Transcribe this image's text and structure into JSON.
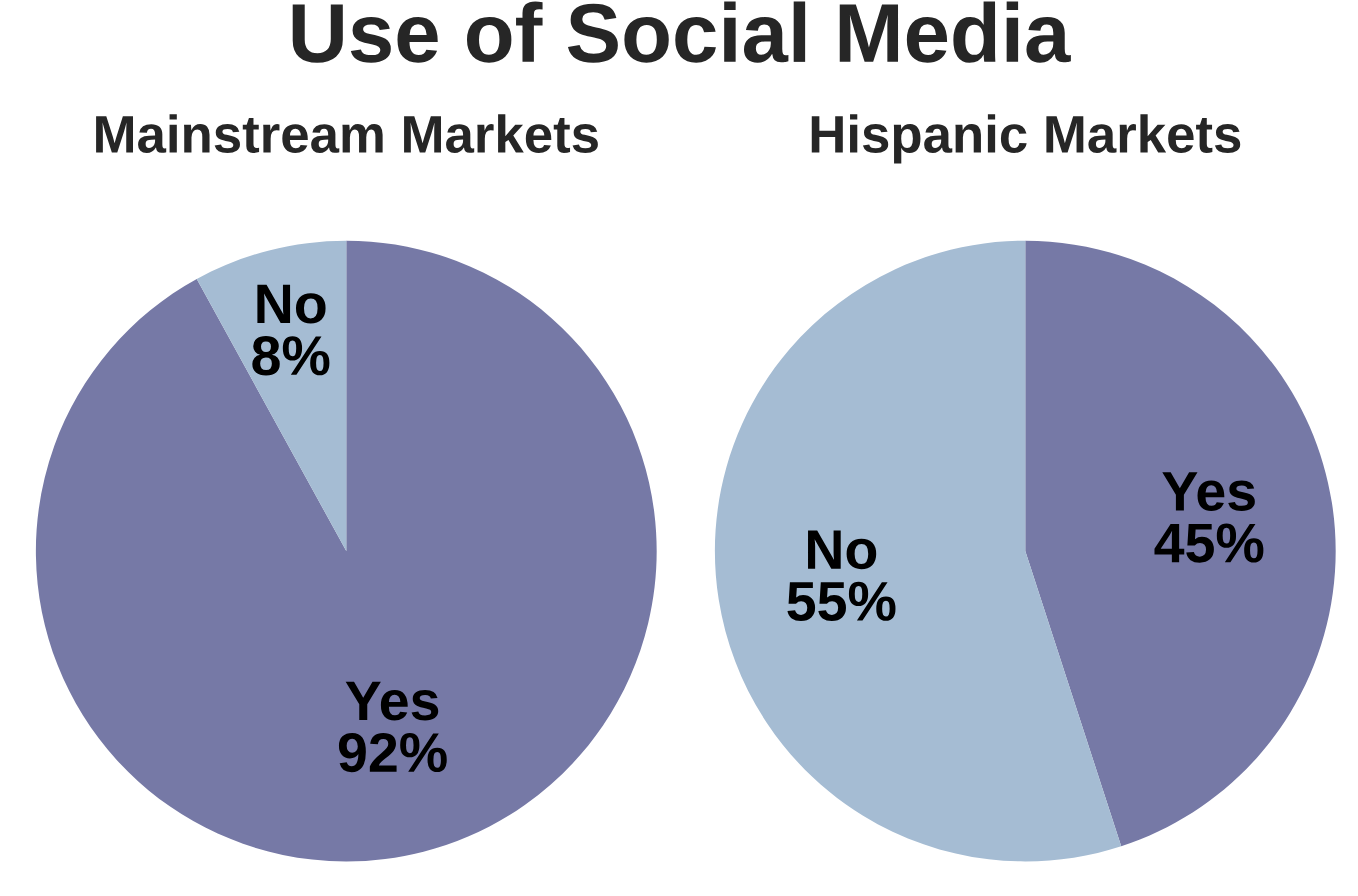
{
  "chart_data": [
    {
      "type": "pie",
      "title": "Use of Social Media",
      "subtitle": "Mainstream Markets",
      "categories": [
        "Yes",
        "No"
      ],
      "values": [
        92,
        8
      ],
      "value_labels": [
        "92%",
        "8%"
      ],
      "colors": [
        "#7679a6",
        "#a5bcd3"
      ]
    },
    {
      "type": "pie",
      "subtitle": "Hispanic Markets",
      "categories": [
        "Yes",
        "No"
      ],
      "values": [
        45,
        55
      ],
      "value_labels": [
        "45%",
        "55%"
      ],
      "colors": [
        "#7679a6",
        "#a5bcd3"
      ]
    }
  ]
}
